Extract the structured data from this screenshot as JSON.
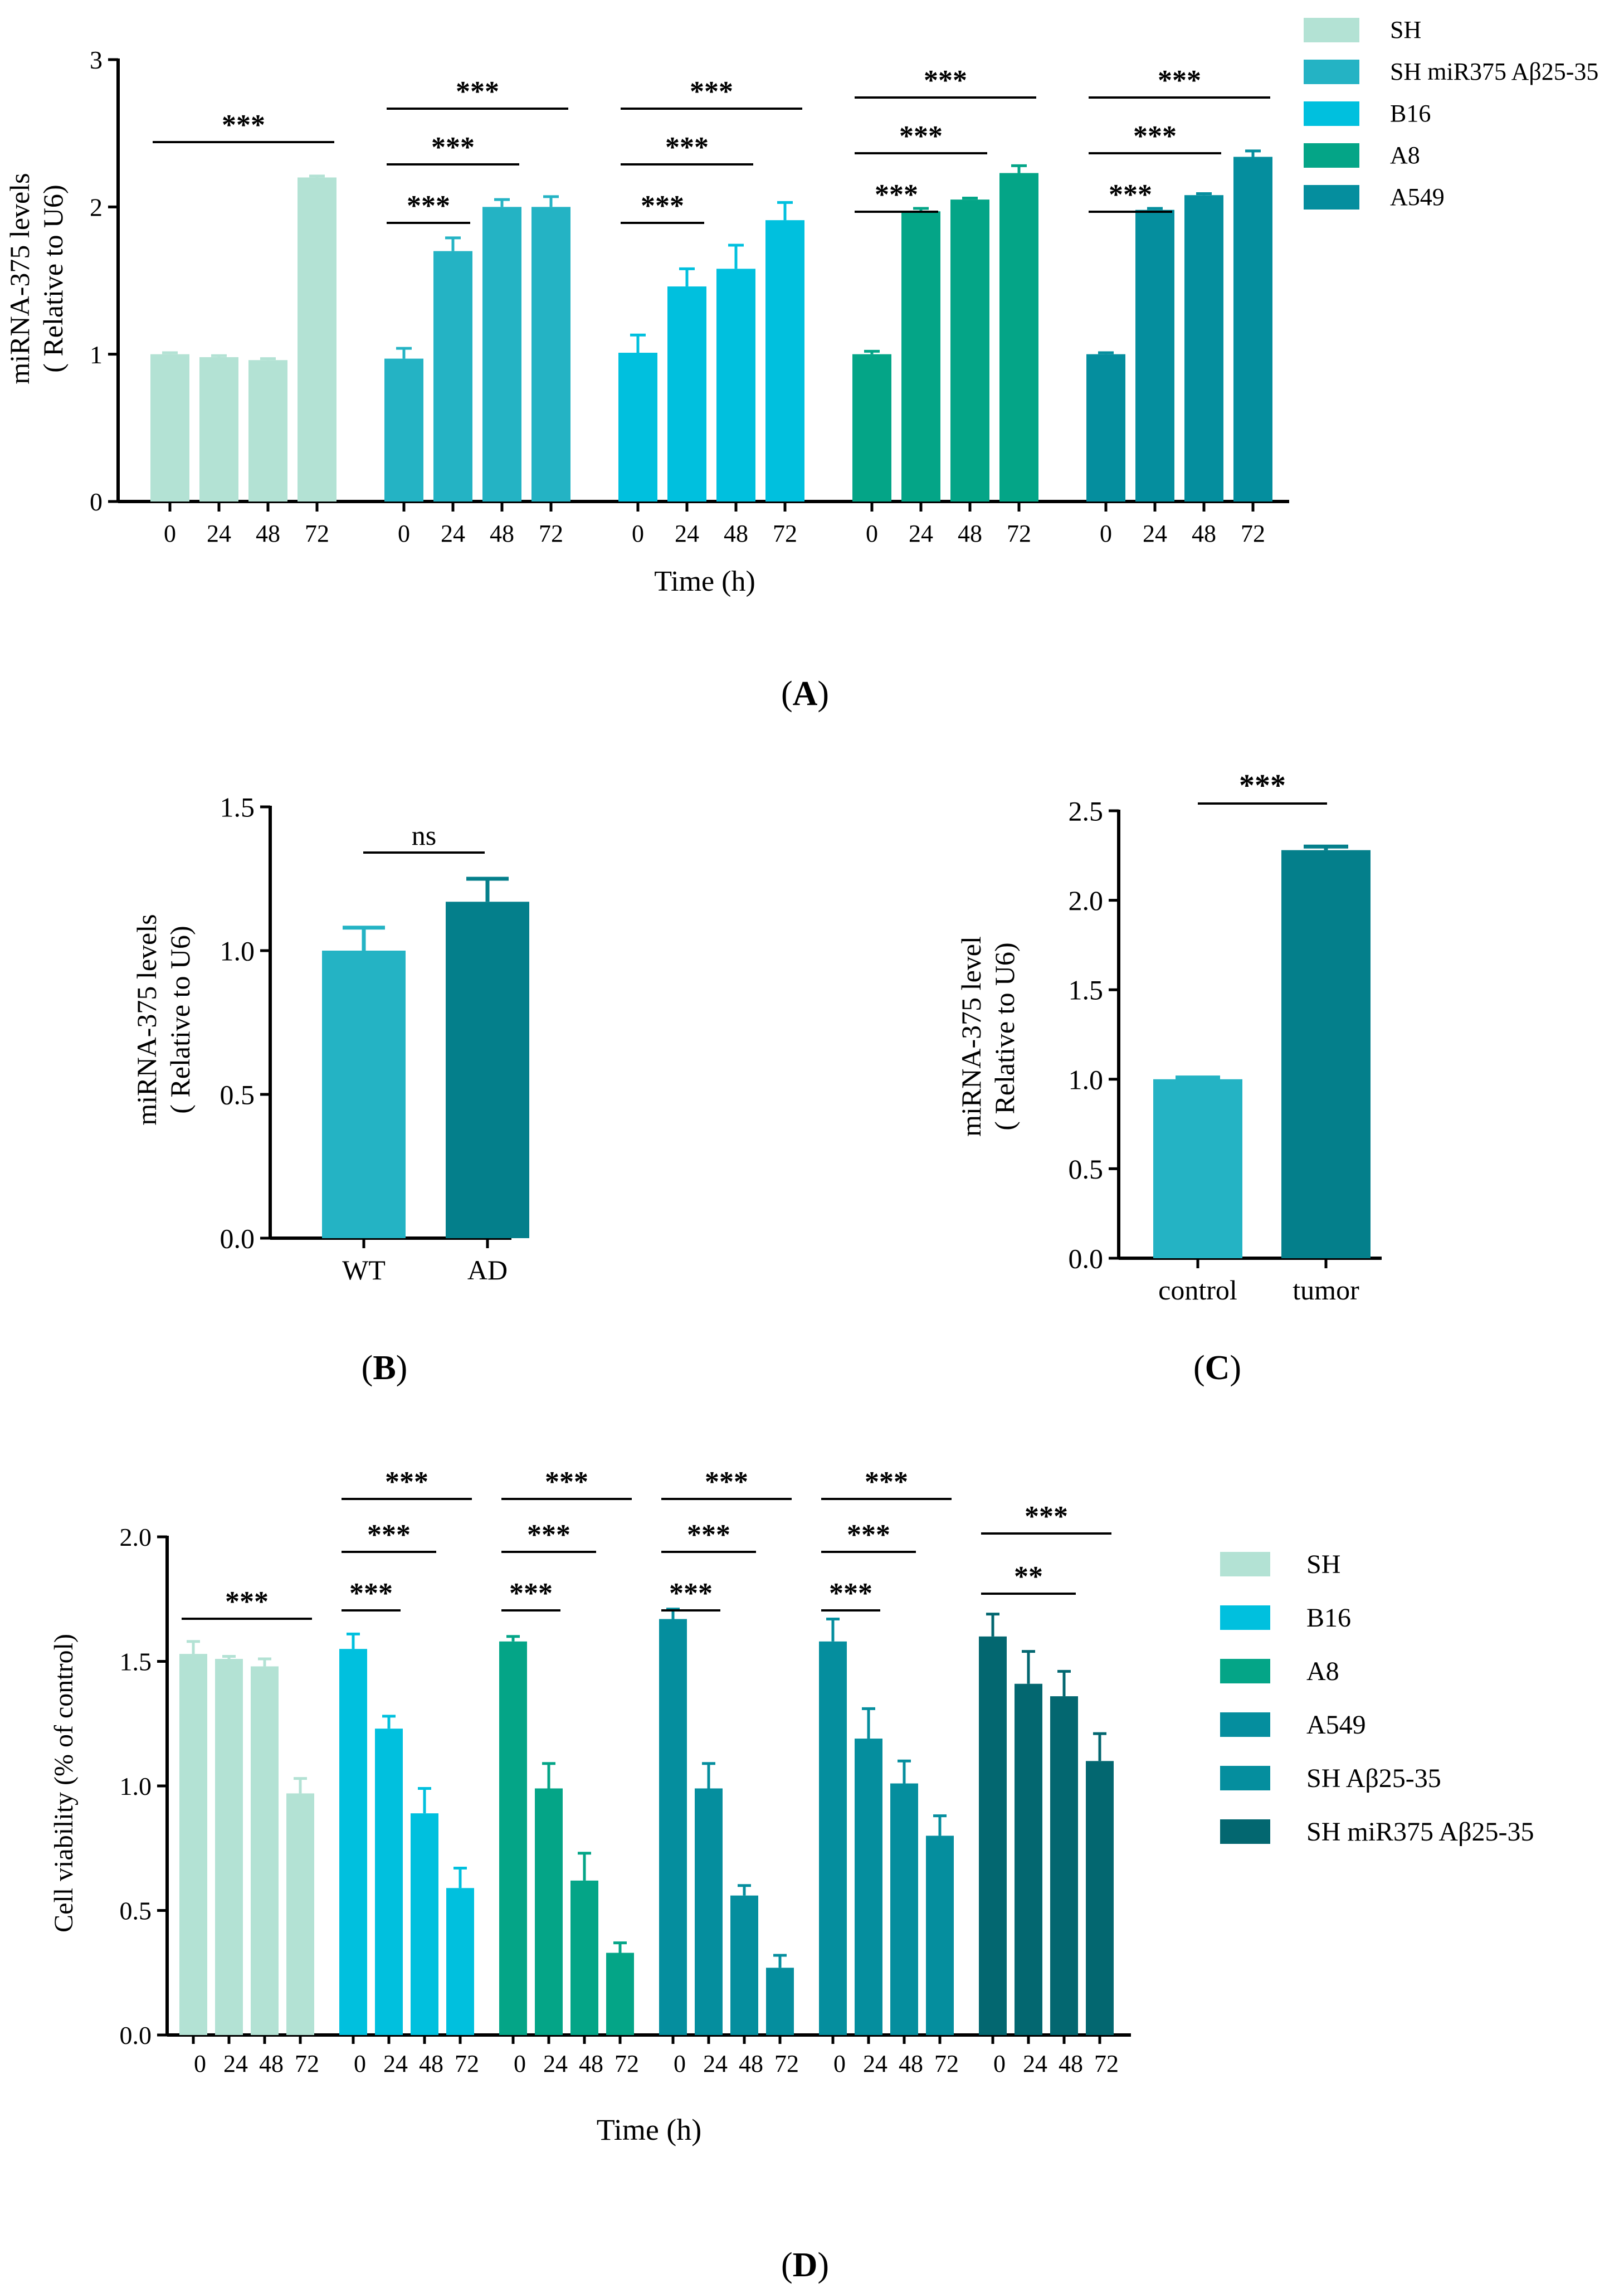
{
  "colors": {
    "SH": "#b3e2d4",
    "SH miR375 Aβ25-35": "#24b3c4",
    "B16": "#00c0de",
    "A8": "#04a587",
    "A549": "#058e9e",
    "SH Aβ25-35": "#058e9e",
    "SH miR375 Aβ25-35 (D)": "#036770",
    "WT": "#24b3c4",
    "AD": "#047f8b",
    "control": "#24b3c4",
    "tumor": "#047f8b"
  },
  "panel_labels": {
    "a": "A",
    "b": "B",
    "c": "C",
    "d": "D"
  },
  "chart_data": [
    {
      "panel": "A",
      "type": "bar",
      "ylabel_line1": "miRNA-375 levels",
      "ylabel_line2": "( Relative to U6)",
      "xlabel": "Time (h)",
      "ylim": [
        0,
        3
      ],
      "yticks": [
        "0",
        "1",
        "2",
        "3"
      ],
      "categories": [
        "0",
        "24",
        "48",
        "72"
      ],
      "legend": [
        "SH",
        "SH miR375 Aβ25-35",
        "B16",
        "A8",
        "A549"
      ],
      "series": [
        {
          "name": "SH",
          "values": [
            1.0,
            0.98,
            0.96,
            2.2
          ],
          "errors": [
            0.01,
            0.01,
            0.01,
            0.01
          ]
        },
        {
          "name": "SH miR375 Aβ25-35",
          "values": [
            0.97,
            1.7,
            2.0,
            2.0
          ],
          "errors": [
            0.07,
            0.09,
            0.05,
            0.07
          ]
        },
        {
          "name": "B16",
          "values": [
            1.01,
            1.46,
            1.58,
            1.91
          ],
          "errors": [
            0.12,
            0.12,
            0.16,
            0.12
          ]
        },
        {
          "name": "A8",
          "values": [
            1.0,
            1.97,
            2.05,
            2.23
          ],
          "errors": [
            0.02,
            0.02,
            0.01,
            0.05
          ]
        },
        {
          "name": "A549",
          "values": [
            1.0,
            1.98,
            2.08,
            2.34
          ],
          "errors": [
            0.01,
            0.01,
            0.01,
            0.04
          ]
        }
      ],
      "significance": [
        {
          "group": 0,
          "from": 0,
          "to": 3,
          "label": "***"
        },
        {
          "group": 1,
          "from": 0,
          "to": 1,
          "label": "***"
        },
        {
          "group": 1,
          "from": 0,
          "to": 2,
          "label": "***"
        },
        {
          "group": 1,
          "from": 0,
          "to": 3,
          "label": "***"
        },
        {
          "group": 2,
          "from": 0,
          "to": 1,
          "label": "***"
        },
        {
          "group": 2,
          "from": 0,
          "to": 2,
          "label": "***"
        },
        {
          "group": 2,
          "from": 0,
          "to": 3,
          "label": "***"
        },
        {
          "group": 3,
          "from": 0,
          "to": 1,
          "label": "***"
        },
        {
          "group": 3,
          "from": 0,
          "to": 2,
          "label": "***"
        },
        {
          "group": 3,
          "from": 0,
          "to": 3,
          "label": "***"
        },
        {
          "group": 4,
          "from": 0,
          "to": 1,
          "label": "***"
        },
        {
          "group": 4,
          "from": 0,
          "to": 2,
          "label": "***"
        },
        {
          "group": 4,
          "from": 0,
          "to": 3,
          "label": "***"
        }
      ]
    },
    {
      "panel": "B",
      "type": "bar",
      "ylabel_line1": "miRNA-375 levels",
      "ylabel_line2": "( Relative to U6)",
      "ylim": [
        0,
        1.5
      ],
      "yticks": [
        "0.0",
        "0.5",
        "1.0",
        "1.5"
      ],
      "categories": [
        "WT",
        "AD"
      ],
      "values": [
        1.0,
        1.17
      ],
      "errors": [
        0.08,
        0.08
      ],
      "significance": [
        {
          "from": 0,
          "to": 1,
          "label": "ns"
        }
      ]
    },
    {
      "panel": "C",
      "type": "bar",
      "ylabel_line1": "miRNA-375 level",
      "ylabel_line2": "( Relative to U6)",
      "ylim": [
        0,
        2.5
      ],
      "yticks": [
        "0.0",
        "0.5",
        "1.0",
        "1.5",
        "2.0",
        "2.5"
      ],
      "categories": [
        "control",
        "tumor"
      ],
      "values": [
        1.0,
        2.28
      ],
      "errors": [
        0.01,
        0.02
      ],
      "significance": [
        {
          "from": 0,
          "to": 1,
          "label": "***"
        }
      ]
    },
    {
      "panel": "D",
      "type": "bar",
      "ylabel": "Cell viability (% of control)",
      "xlabel": "Time (h)",
      "ylim": [
        0,
        2.0
      ],
      "yticks": [
        "0.0",
        "0.5",
        "1.0",
        "1.5",
        "2.0"
      ],
      "categories": [
        "0",
        "24",
        "48",
        "72"
      ],
      "legend": [
        "SH",
        "B16",
        "A8",
        "A549",
        "SH Aβ25-35",
        "SH miR375 Aβ25-35"
      ],
      "series": [
        {
          "name": "SH",
          "values": [
            1.53,
            1.51,
            1.48,
            0.97
          ],
          "errors": [
            0.05,
            0.01,
            0.03,
            0.06
          ]
        },
        {
          "name": "B16",
          "values": [
            1.55,
            1.23,
            0.89,
            0.59
          ],
          "errors": [
            0.06,
            0.05,
            0.1,
            0.08
          ]
        },
        {
          "name": "A8",
          "values": [
            1.58,
            0.99,
            0.62,
            0.33
          ],
          "errors": [
            0.02,
            0.1,
            0.11,
            0.04
          ]
        },
        {
          "name": "A549",
          "values": [
            1.67,
            0.99,
            0.56,
            0.27
          ],
          "errors": [
            0.04,
            0.1,
            0.04,
            0.05
          ]
        },
        {
          "name": "SH Aβ25-35",
          "values": [
            1.58,
            1.19,
            1.01,
            0.8
          ],
          "errors": [
            0.09,
            0.12,
            0.09,
            0.08
          ]
        },
        {
          "name": "SH miR375 Aβ25-35",
          "values": [
            1.6,
            1.41,
            1.36,
            1.1
          ],
          "errors": [
            0.09,
            0.13,
            0.1,
            0.11
          ]
        }
      ],
      "significance": [
        {
          "group": 0,
          "from": 0,
          "to": 3,
          "label": "***"
        },
        {
          "group": 1,
          "from": 0,
          "to": 1,
          "label": "***"
        },
        {
          "group": 1,
          "from": 0,
          "to": 2,
          "label": "***"
        },
        {
          "group": 1,
          "from": 0,
          "to": 3,
          "label": "***"
        },
        {
          "group": 2,
          "from": 0,
          "to": 1,
          "label": "***"
        },
        {
          "group": 2,
          "from": 0,
          "to": 2,
          "label": "***"
        },
        {
          "group": 2,
          "from": 0,
          "to": 3,
          "label": "***"
        },
        {
          "group": 3,
          "from": 0,
          "to": 1,
          "label": "***"
        },
        {
          "group": 3,
          "from": 0,
          "to": 2,
          "label": "***"
        },
        {
          "group": 3,
          "from": 0,
          "to": 3,
          "label": "***"
        },
        {
          "group": 4,
          "from": 0,
          "to": 1,
          "label": "***"
        },
        {
          "group": 4,
          "from": 0,
          "to": 2,
          "label": "***"
        },
        {
          "group": 4,
          "from": 0,
          "to": 3,
          "label": "***"
        },
        {
          "group": 5,
          "from": 0,
          "to": 2,
          "label": "**"
        },
        {
          "group": 5,
          "from": 0,
          "to": 3,
          "label": "***"
        }
      ]
    }
  ]
}
